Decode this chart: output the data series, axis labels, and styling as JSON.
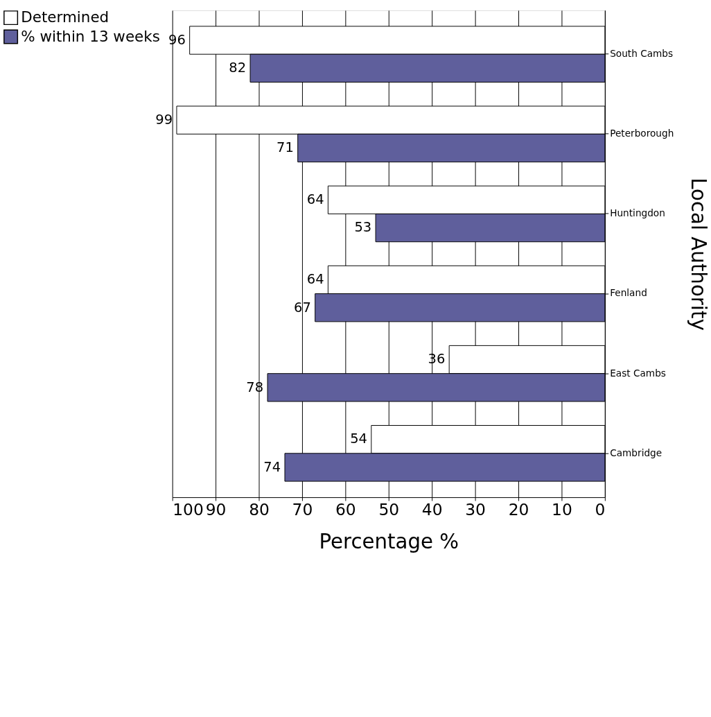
{
  "chart_data": {
    "type": "bar",
    "orientation": "horizontal",
    "xlabel": "Percentage %",
    "ylabel": "Local Authority",
    "categories": [
      "South Cambs",
      "Peterborough",
      "Huntingdon",
      "Fenland",
      "East Cambs",
      "Cambridge"
    ],
    "series": [
      {
        "name": "Determined",
        "color": "#ffffff",
        "values": [
          96,
          99,
          64,
          64,
          36,
          54
        ]
      },
      {
        "name": "% within 13 weeks",
        "color": "#5f5f9c",
        "values": [
          82,
          71,
          53,
          67,
          78,
          74
        ]
      }
    ],
    "xlim": [
      100,
      0
    ],
    "xticks": [
      100,
      90,
      80,
      70,
      60,
      50,
      40,
      30,
      20,
      10,
      0
    ],
    "grid": true,
    "legend": "left",
    "data_labels": true
  }
}
